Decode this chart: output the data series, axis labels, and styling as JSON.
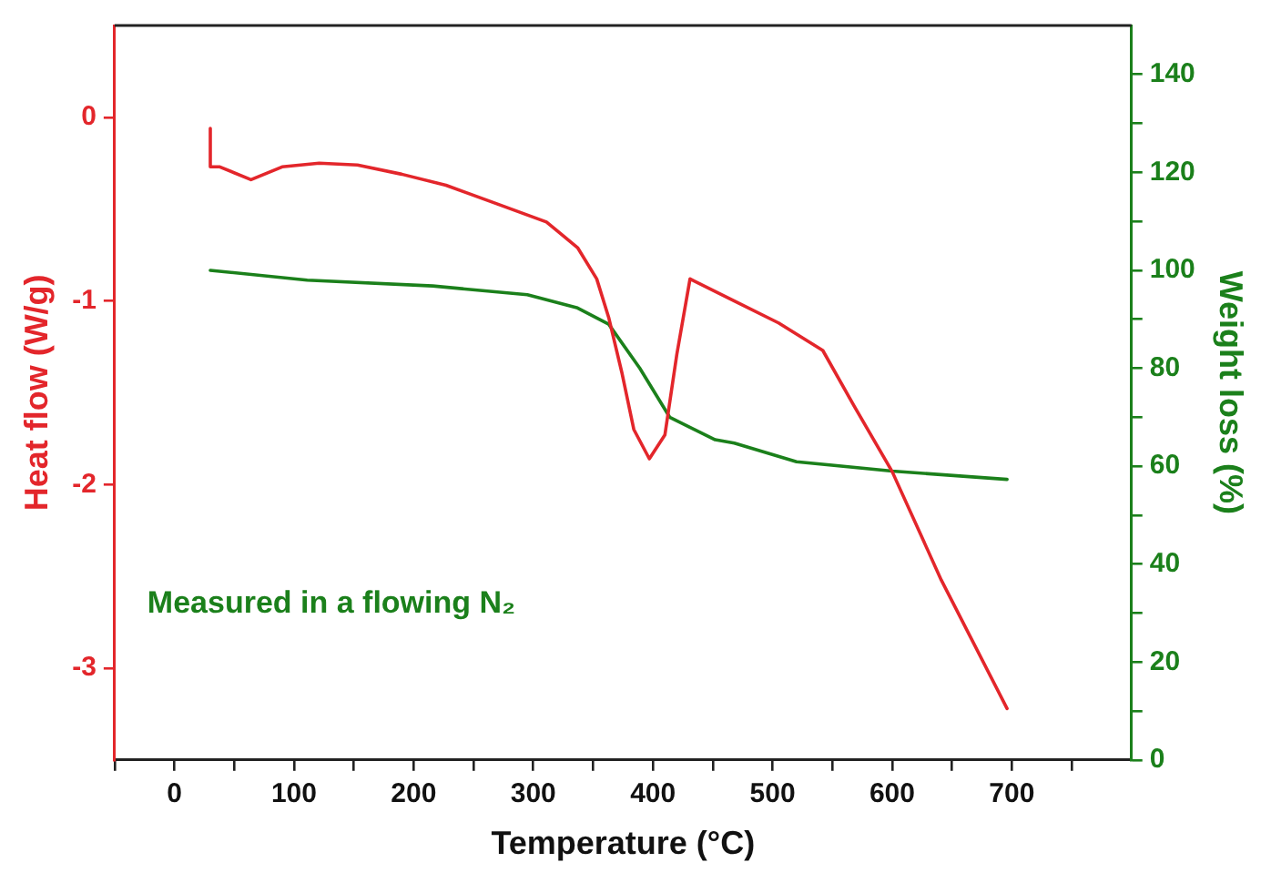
{
  "chart_data": {
    "type": "line",
    "xlabel": "Temperature (°C)",
    "ylabel": "Heat flow (W/g)",
    "y2label": "Weight loss (%)",
    "xlim": [
      -50,
      800
    ],
    "xticks": [
      {
        "value": -50,
        "label": null
      },
      0,
      {
        "value": 50,
        "label": null
      },
      100,
      {
        "value": 150,
        "label": null
      },
      200,
      {
        "value": 250,
        "label": null
      },
      300,
      {
        "value": 350,
        "label": null
      },
      400,
      {
        "value": 450,
        "label": null
      },
      500,
      {
        "value": 550,
        "label": null
      },
      600,
      {
        "value": 650,
        "label": null
      },
      700,
      {
        "value": 750,
        "label": null
      }
    ],
    "ylim": [
      -3.5,
      0.5
    ],
    "yticks": [
      0,
      -1,
      -2,
      -3
    ],
    "y2lim": [
      0,
      150
    ],
    "y2ticks": [
      0,
      {
        "value": 10,
        "label": null
      },
      20,
      {
        "value": 30,
        "label": null
      },
      40,
      {
        "value": 50,
        "label": null
      },
      60,
      {
        "value": 70,
        "label": null
      },
      80,
      {
        "value": 90,
        "label": null
      },
      100,
      {
        "value": 110,
        "label": null
      },
      120,
      {
        "value": 130,
        "label": null
      },
      140
    ],
    "grid": false,
    "legend": false,
    "marker": "none",
    "line_style": "solid",
    "annotations": [
      "Measured in a flowing N₂"
    ],
    "series": [
      {
        "color": "#e3262b",
        "x": [
          30,
          30,
          38,
          64,
          90,
          121,
          153,
          190,
          227,
          269,
          311,
          337,
          353,
          363,
          374,
          384,
          397,
          410,
          420,
          431,
          468,
          505,
          542,
          568,
          600,
          641,
          696
        ],
        "values": [
          -0.06,
          -0.27,
          -0.27,
          -0.34,
          -0.27,
          -0.25,
          -0.26,
          -0.31,
          -0.37,
          -0.47,
          -0.57,
          -0.71,
          -0.88,
          -1.09,
          -1.39,
          -1.7,
          -1.86,
          -1.73,
          -1.29,
          -0.88,
          -1.0,
          -1.12,
          -1.27,
          -1.57,
          -1.93,
          -2.52,
          -3.22
        ]
      },
      {
        "color": "#1b801b",
        "axis": "y2",
        "x": [
          30,
          111,
          216,
          295,
          337,
          363,
          389,
          414,
          452,
          468,
          520,
          600,
          696
        ],
        "values": [
          100,
          98,
          96.8,
          95,
          92.3,
          89,
          80,
          70,
          65.4,
          64.7,
          60.9,
          59,
          57.3
        ]
      }
    ]
  }
}
